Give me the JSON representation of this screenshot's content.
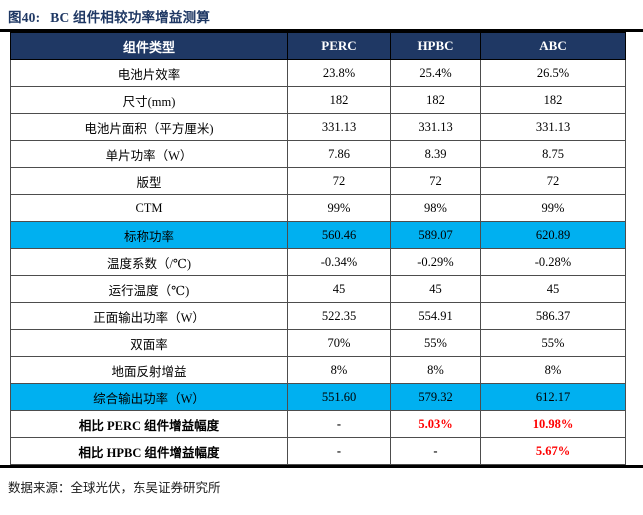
{
  "figure": {
    "label": "图40:",
    "title": "BC 组件相较功率增益测算"
  },
  "colors": {
    "header_bg": "#1F3864",
    "header_text": "#FFFFFF",
    "highlight_bg": "#00B0F0",
    "accent_red": "#FF0000",
    "title_color": "#1F3864"
  },
  "table": {
    "headers": [
      "组件类型",
      "PERC",
      "HPBC",
      "ABC"
    ],
    "rows": [
      {
        "label": "电池片效率",
        "values": [
          "23.8%",
          "25.4%",
          "26.5%"
        ]
      },
      {
        "label": "尺寸(mm)",
        "values": [
          "182",
          "182",
          "182"
        ]
      },
      {
        "label": "电池片面积（平方厘米)",
        "values": [
          "331.13",
          "331.13",
          "331.13"
        ]
      },
      {
        "label": "单片功率（W）",
        "values": [
          "7.86",
          "8.39",
          "8.75"
        ]
      },
      {
        "label": "版型",
        "values": [
          "72",
          "72",
          "72"
        ]
      },
      {
        "label": "CTM",
        "values": [
          "99%",
          "98%",
          "99%"
        ]
      },
      {
        "label": "标称功率",
        "values": [
          "560.46",
          "589.07",
          "620.89"
        ]
      },
      {
        "label": "温度系数（/℃)",
        "values": [
          "-0.34%",
          "-0.29%",
          "-0.28%"
        ]
      },
      {
        "label": "运行温度（℃)",
        "values": [
          "45",
          "45",
          "45"
        ]
      },
      {
        "label": "正面输出功率（W）",
        "values": [
          "522.35",
          "554.91",
          "586.37"
        ]
      },
      {
        "label": "双面率",
        "values": [
          "70%",
          "55%",
          "55%"
        ]
      },
      {
        "label": "地面反射增益",
        "values": [
          "8%",
          "8%",
          "8%"
        ]
      },
      {
        "label": "综合输出功率（W）",
        "values": [
          "551.60",
          "579.32",
          "612.17"
        ]
      },
      {
        "label": "相比 PERC 组件增益幅度",
        "values": [
          "-",
          "5.03%",
          "10.98%"
        ]
      },
      {
        "label": "相比 HPBC 组件增益幅度",
        "values": [
          "-",
          "-",
          "5.67%"
        ]
      }
    ]
  },
  "chart_data": {
    "type": "table",
    "title": "BC 组件相较功率增益测算",
    "columns": [
      "组件类型",
      "PERC",
      "HPBC",
      "ABC"
    ],
    "highlight_rows": [
      "标称功率",
      "综合输出功率（W）"
    ],
    "nominal_power": {
      "PERC": 560.46,
      "HPBC": 589.07,
      "ABC": 620.89
    },
    "combined_output_power": {
      "PERC": 551.6,
      "HPBC": 579.32,
      "ABC": 612.17
    },
    "gain_vs_perc": {
      "HPBC": "5.03%",
      "ABC": "10.98%"
    },
    "gain_vs_hpbc": {
      "ABC": "5.67%"
    }
  },
  "footer": {
    "source": "数据来源：全球光伏，东吴证券研究所"
  }
}
